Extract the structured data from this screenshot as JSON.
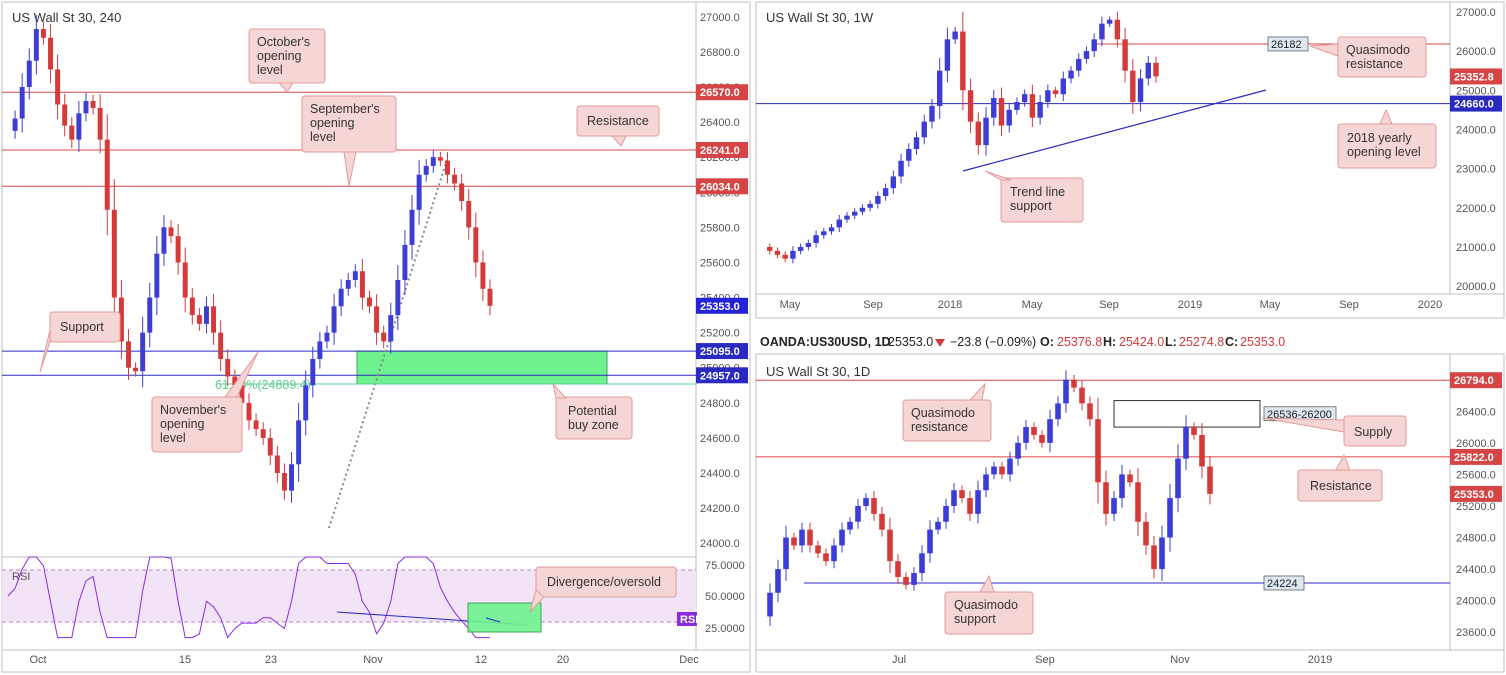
{
  "colors": {
    "up": "#3d3dd6",
    "down": "#d43a3a",
    "red_line": "#d64545",
    "blue_line": "#2a2ac0",
    "callout_bg": "#f6d5d5",
    "callout_border": "#e29a9a",
    "zone": "#6ef28e",
    "rsi_line": "#8a2be2",
    "fib": "#5fcf8f"
  },
  "chart_data": [
    {
      "type": "line",
      "title": "US Wall St 30, 240",
      "ylim": [
        23950,
        27050
      ],
      "yticks": [
        "27000.0",
        "26800.0",
        "26600.0",
        "26400.0",
        "26200.0",
        "26000.0",
        "25800.0",
        "25600.0",
        "25400.0",
        "25200.0",
        "25000.0",
        "24800.0",
        "24600.0",
        "24400.0",
        "24200.0",
        "24000.0"
      ],
      "xticks": [
        "Oct",
        "15",
        "23",
        "Nov",
        "12",
        "20",
        "Dec"
      ],
      "levels": [
        {
          "value": 26570.0,
          "label": "26570.0",
          "color": "red"
        },
        {
          "value": 26241.0,
          "label": "26241.0",
          "color": "red"
        },
        {
          "value": 26034.0,
          "label": "26034.0",
          "color": "red"
        },
        {
          "value": 25095.0,
          "label": "25095.0",
          "color": "blue"
        },
        {
          "value": 24957.0,
          "label": "24957.0",
          "color": "blue"
        }
      ],
      "last_price": {
        "value": 25353.0,
        "label": "25353.0"
      },
      "zone": [
        24889.4,
        25095.0
      ],
      "fib_label": "61.80%(24889.4)",
      "price_path": [
        26350,
        26420,
        26600,
        26750,
        26930,
        26880,
        26700,
        26500,
        26380,
        26300,
        26450,
        26520,
        26480,
        26300,
        25900,
        25400,
        25150,
        25000,
        24980,
        25200,
        25400,
        25650,
        25800,
        25750,
        25600,
        25400,
        25300,
        25250,
        25350,
        25200,
        25050,
        24950,
        24900,
        24800,
        24700,
        24650,
        24600,
        24500,
        24400,
        24300,
        24450,
        24700,
        24900,
        25050,
        25150,
        25200,
        25350,
        25450,
        25500,
        25550,
        25400,
        25350,
        25200,
        25150,
        25300,
        25500,
        25700,
        25900,
        26100,
        26150,
        26200,
        26180,
        26100,
        26050,
        25950,
        25800,
        25600,
        25450,
        25353
      ],
      "rsi": {
        "label": "RSI",
        "ticks": [
          "75.0000",
          "50.0000",
          "25.0000"
        ],
        "tag": "RSI"
      },
      "annotations": [
        "October's opening level",
        "September's opening level",
        "Resistance",
        "Support",
        "November's opening level",
        "Potential buy zone",
        "Divergence/oversold"
      ]
    },
    {
      "type": "line",
      "title": "US Wall St 30, 1W",
      "ylim": [
        19850,
        27100
      ],
      "yticks": [
        "27000.0",
        "26000.0",
        "25000.0",
        "24000.0",
        "23000.0",
        "22000.0",
        "21000.0",
        "20000.0"
      ],
      "xticks": [
        "May",
        "Sep",
        "2018",
        "May",
        "Sep",
        "2019",
        "May",
        "Sep",
        "2020"
      ],
      "levels": [
        {
          "value": 26182,
          "label": "26182",
          "color": "red"
        },
        {
          "value": 24660.0,
          "label": "24660.0",
          "color": "blue"
        }
      ],
      "last_price": {
        "value": 25352.8,
        "label": "25352.8"
      },
      "price_path": [
        21000,
        20900,
        20800,
        20700,
        20900,
        21000,
        21100,
        21300,
        21400,
        21500,
        21700,
        21800,
        21900,
        22000,
        22100,
        22300,
        22500,
        22800,
        23200,
        23500,
        23800,
        24200,
        24600,
        25500,
        26300,
        26500,
        25000,
        24200,
        23600,
        24300,
        24800,
        24100,
        24500,
        24700,
        24900,
        24300,
        24700,
        25000,
        24900,
        25300,
        25500,
        25800,
        26000,
        26300,
        26700,
        26800,
        26300,
        25500,
        24700,
        25300,
        25700,
        25353
      ],
      "annotations": [
        "Quasimodo resistance",
        "2018 yearly opening level",
        "Trend line support"
      ]
    },
    {
      "type": "line",
      "title": "US Wall St 30, 1D",
      "ylim": [
        23400,
        27050
      ],
      "yticks": [
        "26800.0",
        "26400.0",
        "26000.0",
        "25600.0",
        "25200.0",
        "24800.0",
        "24400.0",
        "24000.0",
        "23600.0"
      ],
      "xticks": [
        "Jul",
        "Sep",
        "Nov",
        "2019"
      ],
      "levels": [
        {
          "value": 26794.0,
          "label": "26794.0",
          "color": "red"
        },
        {
          "value": 25822.0,
          "label": "25822.0",
          "color": "red"
        },
        {
          "value": 24224,
          "label": "24224",
          "color": "blue"
        }
      ],
      "supply": {
        "label": "26536-26200",
        "range": [
          26200,
          26536
        ]
      },
      "last_price": {
        "value": 25353.0,
        "label": "25353.0"
      },
      "price_path": [
        23800,
        24100,
        24400,
        24800,
        24700,
        24900,
        24700,
        24600,
        24500,
        24700,
        24900,
        25000,
        25200,
        25300,
        25100,
        24900,
        24500,
        24300,
        24200,
        24350,
        24600,
        24900,
        25000,
        25200,
        25400,
        25300,
        25100,
        25400,
        25600,
        25700,
        25600,
        25800,
        26000,
        26200,
        26100,
        26000,
        26300,
        26500,
        26800,
        26700,
        26500,
        26300,
        25500,
        25100,
        25300,
        25600,
        25500,
        25000,
        24700,
        24400,
        24800,
        25300,
        25800,
        26200,
        26100,
        25700,
        25353
      ],
      "annotations": [
        "Quasimodo resistance",
        "Quasimodo support",
        "Supply",
        "Resistance"
      ]
    }
  ],
  "info_bar": {
    "symbol": "OANDA:US30USD, 1D",
    "price": "25353.0",
    "change": "−23.8 (−0.09%)",
    "o_label": "O:",
    "o_value": "25376.8",
    "h_label": "H:",
    "h_value": "25424.0",
    "l_label": "L:",
    "l_value": "25274.8",
    "c_label": "C:",
    "c_value": "25353.0"
  }
}
